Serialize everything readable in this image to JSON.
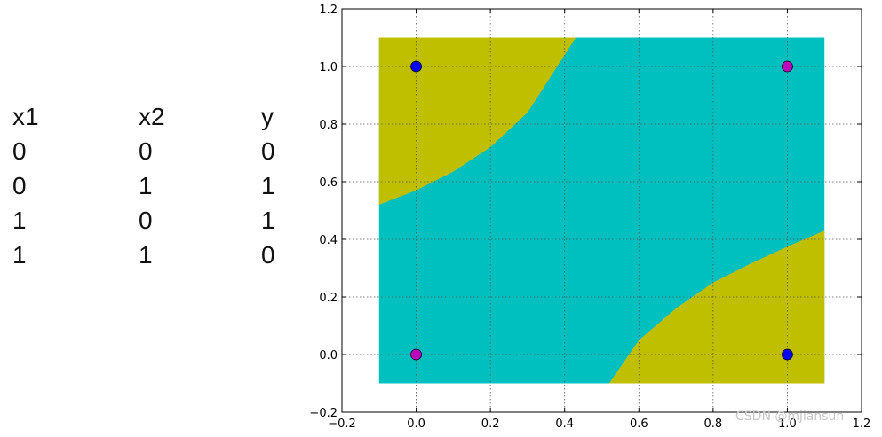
{
  "truth_table": {
    "headers": [
      "x1",
      "x2",
      "y"
    ],
    "rows": [
      [
        "0",
        "0",
        "0"
      ],
      [
        "0",
        "1",
        "1"
      ],
      [
        "1",
        "0",
        "1"
      ],
      [
        "1",
        "1",
        "0"
      ]
    ]
  },
  "chart_data": {
    "type": "scatter",
    "title": "",
    "xlabel": "",
    "ylabel": "",
    "xlim": [
      -0.2,
      1.2
    ],
    "ylim": [
      -0.2,
      1.2
    ],
    "x_ticks": [
      "−0.2",
      "0.0",
      "0.2",
      "0.4",
      "0.6",
      "0.8",
      "1.0",
      "1.2"
    ],
    "y_ticks": [
      "−0.2",
      "0.0",
      "0.2",
      "0.4",
      "0.6",
      "0.8",
      "1.0",
      "1.2"
    ],
    "grid": true,
    "grid_style": "dotted",
    "decision_region": {
      "extent": {
        "x": [
          -0.1,
          1.1
        ],
        "y": [
          -0.1,
          1.1
        ]
      },
      "background_class_color": "#00bfbf",
      "positive_class_color": "#bfbf00",
      "top_left_boundary": [
        [
          -0.1,
          0.52
        ],
        [
          0.0,
          0.57
        ],
        [
          0.1,
          0.635
        ],
        [
          0.2,
          0.72
        ],
        [
          0.3,
          0.84
        ],
        [
          0.4,
          1.04
        ],
        [
          0.43,
          1.1
        ]
      ],
      "bottom_right_boundary": [
        [
          0.52,
          -0.1
        ],
        [
          0.6,
          0.05
        ],
        [
          0.7,
          0.16
        ],
        [
          0.8,
          0.25
        ],
        [
          0.9,
          0.315
        ],
        [
          1.0,
          0.375
        ],
        [
          1.1,
          0.43
        ]
      ]
    },
    "series": [
      {
        "color": "#0000ff",
        "points": [
          [
            0.0,
            1.0
          ],
          [
            1.0,
            0.0
          ]
        ]
      },
      {
        "color": "#bf00bf",
        "points": [
          [
            0.0,
            0.0
          ],
          [
            1.0,
            1.0
          ]
        ]
      }
    ]
  },
  "watermark": "CSDN @mjiansun"
}
